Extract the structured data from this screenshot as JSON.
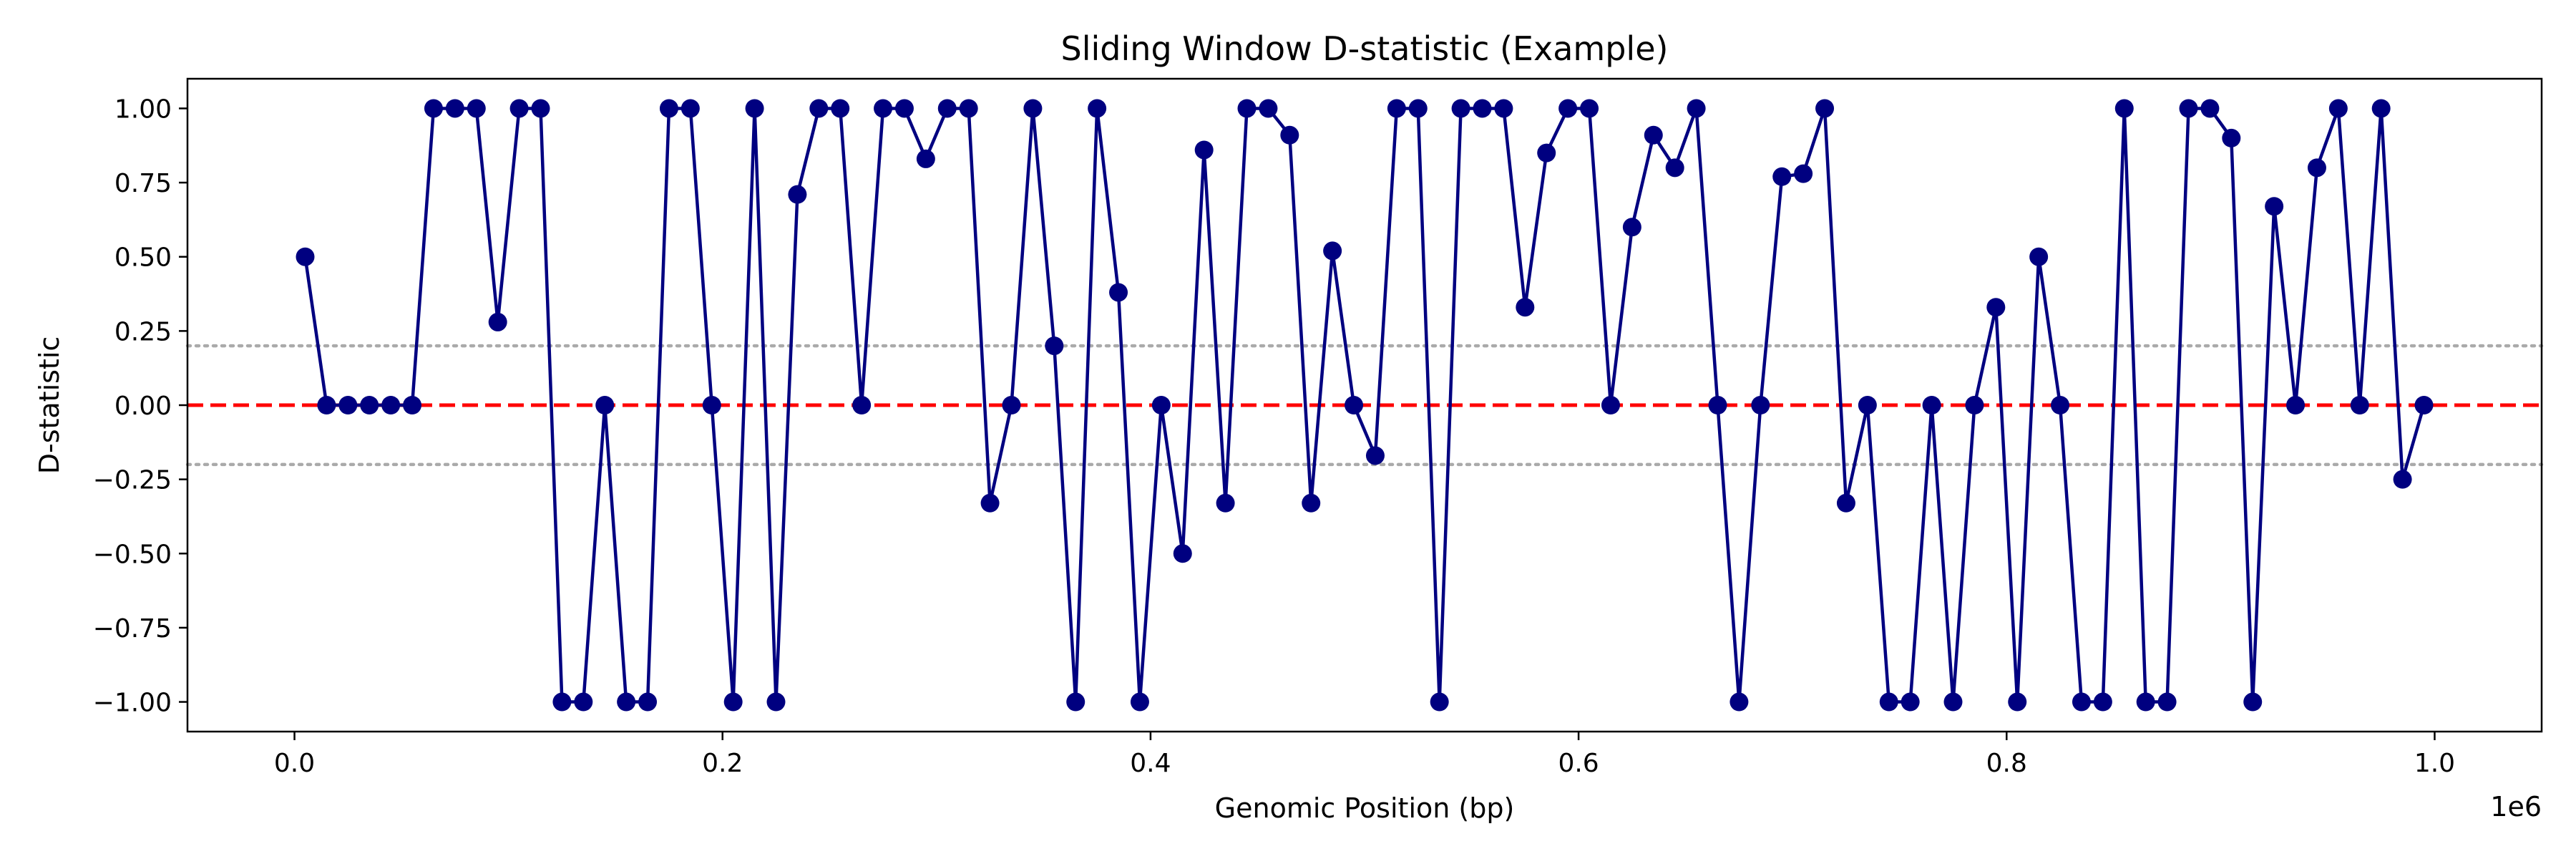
{
  "chart_data": {
    "type": "line",
    "title": "Sliding Window D-statistic (Example)",
    "xlabel": "Genomic Position (bp)",
    "ylabel": "D-statistic",
    "x_offset_label": "1e6",
    "xlim": [
      -50000,
      1050000
    ],
    "ylim": [
      -1.1,
      1.1
    ],
    "x_ticks": [
      {
        "value": 0,
        "label": "0.0"
      },
      {
        "value": 200000,
        "label": "0.2"
      },
      {
        "value": 400000,
        "label": "0.4"
      },
      {
        "value": 600000,
        "label": "0.6"
      },
      {
        "value": 800000,
        "label": "0.8"
      },
      {
        "value": 1000000,
        "label": "1.0"
      }
    ],
    "y_ticks": [
      {
        "value": 1.0,
        "label": "1.00"
      },
      {
        "value": 0.75,
        "label": "0.75"
      },
      {
        "value": 0.5,
        "label": "0.50"
      },
      {
        "value": 0.25,
        "label": "0.25"
      },
      {
        "value": 0.0,
        "label": "0.00"
      },
      {
        "value": -0.25,
        "label": "−0.25"
      },
      {
        "value": -0.5,
        "label": "−0.50"
      },
      {
        "value": -0.75,
        "label": "−0.75"
      },
      {
        "value": -1.0,
        "label": "−1.00"
      }
    ],
    "reference_lines": [
      {
        "y": 0.0,
        "color": "#ff0000",
        "style": "dashed"
      },
      {
        "y": 0.2,
        "color": "#aaaaaa",
        "style": "dotted"
      },
      {
        "y": -0.2,
        "color": "#aaaaaa",
        "style": "dotted"
      }
    ],
    "grid": false,
    "series": [
      {
        "color": "#000080",
        "marker": "circle",
        "x": [
          5000,
          15000,
          25000,
          35000,
          45000,
          55000,
          65000,
          75000,
          85000,
          95000,
          105000,
          115000,
          125000,
          135000,
          145000,
          155000,
          165000,
          175000,
          185000,
          195000,
          205000,
          215000,
          225000,
          235000,
          245000,
          255000,
          265000,
          275000,
          285000,
          295000,
          305000,
          315000,
          325000,
          335000,
          345000,
          355000,
          365000,
          375000,
          385000,
          395000,
          405000,
          415000,
          425000,
          435000,
          445000,
          455000,
          465000,
          475000,
          485000,
          495000,
          505000,
          515000,
          525000,
          535000,
          545000,
          555000,
          565000,
          575000,
          585000,
          595000,
          605000,
          615000,
          625000,
          635000,
          645000,
          655000,
          665000,
          675000,
          685000,
          695000,
          705000,
          715000,
          725000,
          735000,
          745000,
          755000,
          765000,
          775000,
          785000,
          795000,
          805000,
          815000,
          825000,
          835000,
          845000,
          855000,
          865000,
          875000,
          885000,
          895000,
          905000,
          915000,
          925000,
          935000,
          945000,
          955000,
          965000,
          975000,
          985000,
          995000
        ],
        "y": [
          0.5,
          0,
          0,
          0,
          0,
          0,
          1,
          1,
          1,
          0.28,
          1,
          1,
          -1,
          -1,
          0,
          -1,
          -1,
          1,
          1,
          0,
          -1,
          1,
          -1,
          0.71,
          1,
          1,
          0,
          1,
          1,
          0.83,
          1,
          1,
          -0.33,
          0,
          1,
          0.2,
          -1,
          1,
          0.38,
          -1,
          0,
          -0.5,
          0.86,
          -0.33,
          1,
          1,
          0.91,
          -0.33,
          0.52,
          0,
          -0.17,
          1,
          1,
          -1,
          1,
          1,
          1,
          0.33,
          0.85,
          1,
          1,
          0,
          0.6,
          0.91,
          0.8,
          1,
          0,
          -1,
          0,
          0.77,
          0.78,
          1,
          -0.33,
          0,
          -1,
          -1,
          0,
          -1,
          0,
          0.33,
          -1,
          0.5,
          0,
          -1,
          -1,
          1,
          -1,
          -1,
          1,
          1,
          0.9,
          -1,
          0.67,
          0,
          0.8,
          1,
          0,
          1,
          -0.25,
          0
        ]
      }
    ]
  }
}
